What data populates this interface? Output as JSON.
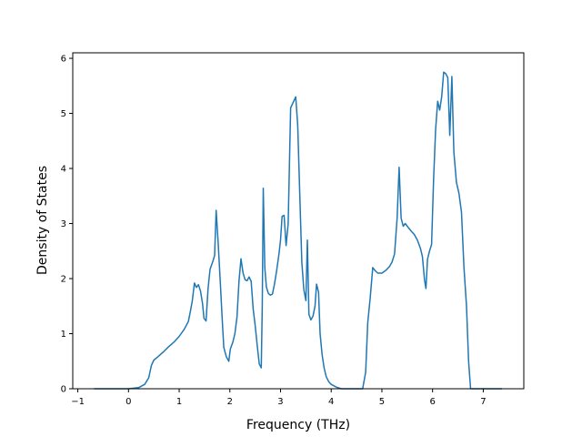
{
  "chart_data": {
    "type": "line",
    "title": "",
    "xlabel": "Frequency (THz)",
    "ylabel": "Density of States",
    "xlim": [
      -1.1,
      7.8
    ],
    "ylim": [
      0,
      6.1
    ],
    "x_ticks": [
      -1,
      0,
      1,
      2,
      3,
      4,
      5,
      6,
      7
    ],
    "y_ticks": [
      0,
      1,
      2,
      3,
      4,
      5,
      6
    ],
    "x_tick_labels": [
      "−1",
      "0",
      "1",
      "2",
      "3",
      "4",
      "5",
      "6",
      "7"
    ],
    "y_tick_labels": [
      "0",
      "1",
      "2",
      "3",
      "4",
      "5",
      "6"
    ],
    "grid": false,
    "legend": "none",
    "line_color": "#1f77b4",
    "series": [
      {
        "points": [
          [
            -0.68,
            0
          ],
          [
            0.0,
            0
          ],
          [
            0.2,
            0.02
          ],
          [
            0.32,
            0.08
          ],
          [
            0.4,
            0.2
          ],
          [
            0.45,
            0.42
          ],
          [
            0.5,
            0.52
          ],
          [
            0.58,
            0.58
          ],
          [
            0.7,
            0.68
          ],
          [
            0.8,
            0.77
          ],
          [
            0.9,
            0.85
          ],
          [
            1.0,
            0.95
          ],
          [
            1.1,
            1.08
          ],
          [
            1.18,
            1.22
          ],
          [
            1.22,
            1.4
          ],
          [
            1.26,
            1.6
          ],
          [
            1.3,
            1.92
          ],
          [
            1.34,
            1.84
          ],
          [
            1.38,
            1.89
          ],
          [
            1.42,
            1.78
          ],
          [
            1.46,
            1.55
          ],
          [
            1.49,
            1.28
          ],
          [
            1.53,
            1.23
          ],
          [
            1.57,
            1.82
          ],
          [
            1.61,
            2.17
          ],
          [
            1.66,
            2.3
          ],
          [
            1.7,
            2.42
          ],
          [
            1.73,
            3.24
          ],
          [
            1.77,
            2.65
          ],
          [
            1.81,
            1.95
          ],
          [
            1.85,
            1.25
          ],
          [
            1.88,
            0.75
          ],
          [
            1.93,
            0.58
          ],
          [
            1.98,
            0.5
          ],
          [
            2.01,
            0.72
          ],
          [
            2.06,
            0.85
          ],
          [
            2.1,
            1.0
          ],
          [
            2.14,
            1.3
          ],
          [
            2.18,
            1.95
          ],
          [
            2.22,
            2.36
          ],
          [
            2.26,
            2.1
          ],
          [
            2.3,
            1.98
          ],
          [
            2.34,
            1.96
          ],
          [
            2.38,
            2.03
          ],
          [
            2.42,
            1.95
          ],
          [
            2.46,
            1.45
          ],
          [
            2.5,
            1.15
          ],
          [
            2.54,
            0.78
          ],
          [
            2.58,
            0.45
          ],
          [
            2.62,
            0.38
          ],
          [
            2.64,
            1.5
          ],
          [
            2.66,
            3.64
          ],
          [
            2.69,
            2.2
          ],
          [
            2.72,
            1.85
          ],
          [
            2.76,
            1.73
          ],
          [
            2.8,
            1.7
          ],
          [
            2.84,
            1.72
          ],
          [
            2.88,
            1.9
          ],
          [
            2.92,
            2.12
          ],
          [
            2.97,
            2.45
          ],
          [
            3.0,
            2.7
          ],
          [
            3.03,
            3.13
          ],
          [
            3.07,
            3.15
          ],
          [
            3.11,
            2.6
          ],
          [
            3.15,
            3.0
          ],
          [
            3.2,
            5.1
          ],
          [
            3.26,
            5.22
          ],
          [
            3.3,
            5.3
          ],
          [
            3.34,
            4.78
          ],
          [
            3.38,
            3.5
          ],
          [
            3.42,
            2.3
          ],
          [
            3.46,
            1.8
          ],
          [
            3.5,
            1.6
          ],
          [
            3.53,
            2.7
          ],
          [
            3.56,
            1.35
          ],
          [
            3.6,
            1.25
          ],
          [
            3.64,
            1.32
          ],
          [
            3.68,
            1.5
          ],
          [
            3.71,
            1.9
          ],
          [
            3.75,
            1.75
          ],
          [
            3.78,
            1.0
          ],
          [
            3.82,
            0.62
          ],
          [
            3.86,
            0.38
          ],
          [
            3.9,
            0.22
          ],
          [
            3.95,
            0.13
          ],
          [
            4.0,
            0.08
          ],
          [
            4.1,
            0.03
          ],
          [
            4.2,
            0.0
          ],
          [
            4.62,
            0.0
          ],
          [
            4.68,
            0.3
          ],
          [
            4.72,
            1.2
          ],
          [
            4.77,
            1.65
          ],
          [
            4.82,
            2.2
          ],
          [
            4.87,
            2.14
          ],
          [
            4.92,
            2.1
          ],
          [
            5.0,
            2.1
          ],
          [
            5.08,
            2.15
          ],
          [
            5.15,
            2.22
          ],
          [
            5.2,
            2.3
          ],
          [
            5.25,
            2.45
          ],
          [
            5.3,
            3.1
          ],
          [
            5.34,
            4.02
          ],
          [
            5.38,
            3.1
          ],
          [
            5.42,
            2.95
          ],
          [
            5.46,
            3.0
          ],
          [
            5.52,
            2.93
          ],
          [
            5.58,
            2.86
          ],
          [
            5.64,
            2.8
          ],
          [
            5.7,
            2.7
          ],
          [
            5.76,
            2.55
          ],
          [
            5.8,
            2.4
          ],
          [
            5.84,
            1.98
          ],
          [
            5.87,
            1.82
          ],
          [
            5.9,
            2.35
          ],
          [
            5.94,
            2.5
          ],
          [
            5.98,
            2.62
          ],
          [
            6.02,
            3.8
          ],
          [
            6.06,
            4.7
          ],
          [
            6.1,
            5.22
          ],
          [
            6.14,
            5.06
          ],
          [
            6.18,
            5.3
          ],
          [
            6.22,
            5.75
          ],
          [
            6.26,
            5.72
          ],
          [
            6.3,
            5.65
          ],
          [
            6.34,
            4.6
          ],
          [
            6.38,
            5.67
          ],
          [
            6.42,
            4.3
          ],
          [
            6.47,
            3.75
          ],
          [
            6.52,
            3.55
          ],
          [
            6.57,
            3.2
          ],
          [
            6.62,
            2.2
          ],
          [
            6.67,
            1.5
          ],
          [
            6.71,
            0.5
          ],
          [
            6.75,
            0.0
          ],
          [
            7.37,
            0.0
          ]
        ]
      }
    ]
  }
}
